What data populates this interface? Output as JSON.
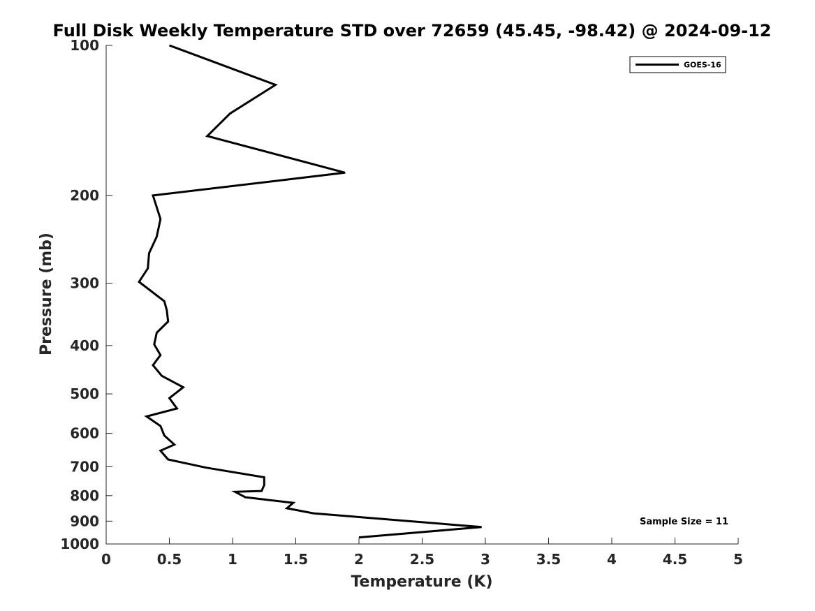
{
  "chart_data": {
    "type": "line",
    "title": "Full Disk Weekly Temperature STD over 72659 (45.45, -98.42) @ 2024-09-12",
    "xlabel": "Temperature (K)",
    "ylabel": "Pressure (mb)",
    "xlim": [
      0,
      5
    ],
    "ylim": [
      100,
      1000
    ],
    "y_scale": "log",
    "y_reversed": true,
    "x_ticks": [
      "0",
      "0.5",
      "1",
      "1.5",
      "2",
      "2.5",
      "3",
      "3.5",
      "4",
      "4.5",
      "5"
    ],
    "y_ticks": [
      "100",
      "200",
      "300",
      "400",
      "500",
      "600",
      "700",
      "800",
      "900",
      "1000"
    ],
    "grid": false,
    "legend_position": "top-right",
    "annotation": "Sample Size = 11",
    "series": [
      {
        "name": "GOES-16",
        "color": "#000000",
        "x": [
          0.5,
          1.34,
          0.98,
          0.8,
          1.89,
          0.37,
          0.43,
          0.4,
          0.34,
          0.33,
          0.26,
          0.46,
          0.48,
          0.49,
          0.4,
          0.38,
          0.43,
          0.37,
          0.44,
          0.61,
          0.5,
          0.56,
          0.32,
          0.43,
          0.46,
          0.54,
          0.43,
          0.49,
          0.79,
          1.25,
          1.25,
          1.23,
          1.02,
          1.1,
          1.48,
          1.43,
          1.64,
          2.97,
          2.0
        ],
        "y": [
          100,
          120,
          137,
          152,
          180,
          200,
          223,
          242,
          261,
          280,
          298,
          326,
          340,
          358,
          377,
          398,
          418,
          438,
          460,
          485,
          510,
          535,
          555,
          580,
          606,
          632,
          650,
          677,
          703,
          735,
          762,
          783,
          786,
          806,
          827,
          848,
          868,
          925,
          970
        ]
      }
    ]
  }
}
